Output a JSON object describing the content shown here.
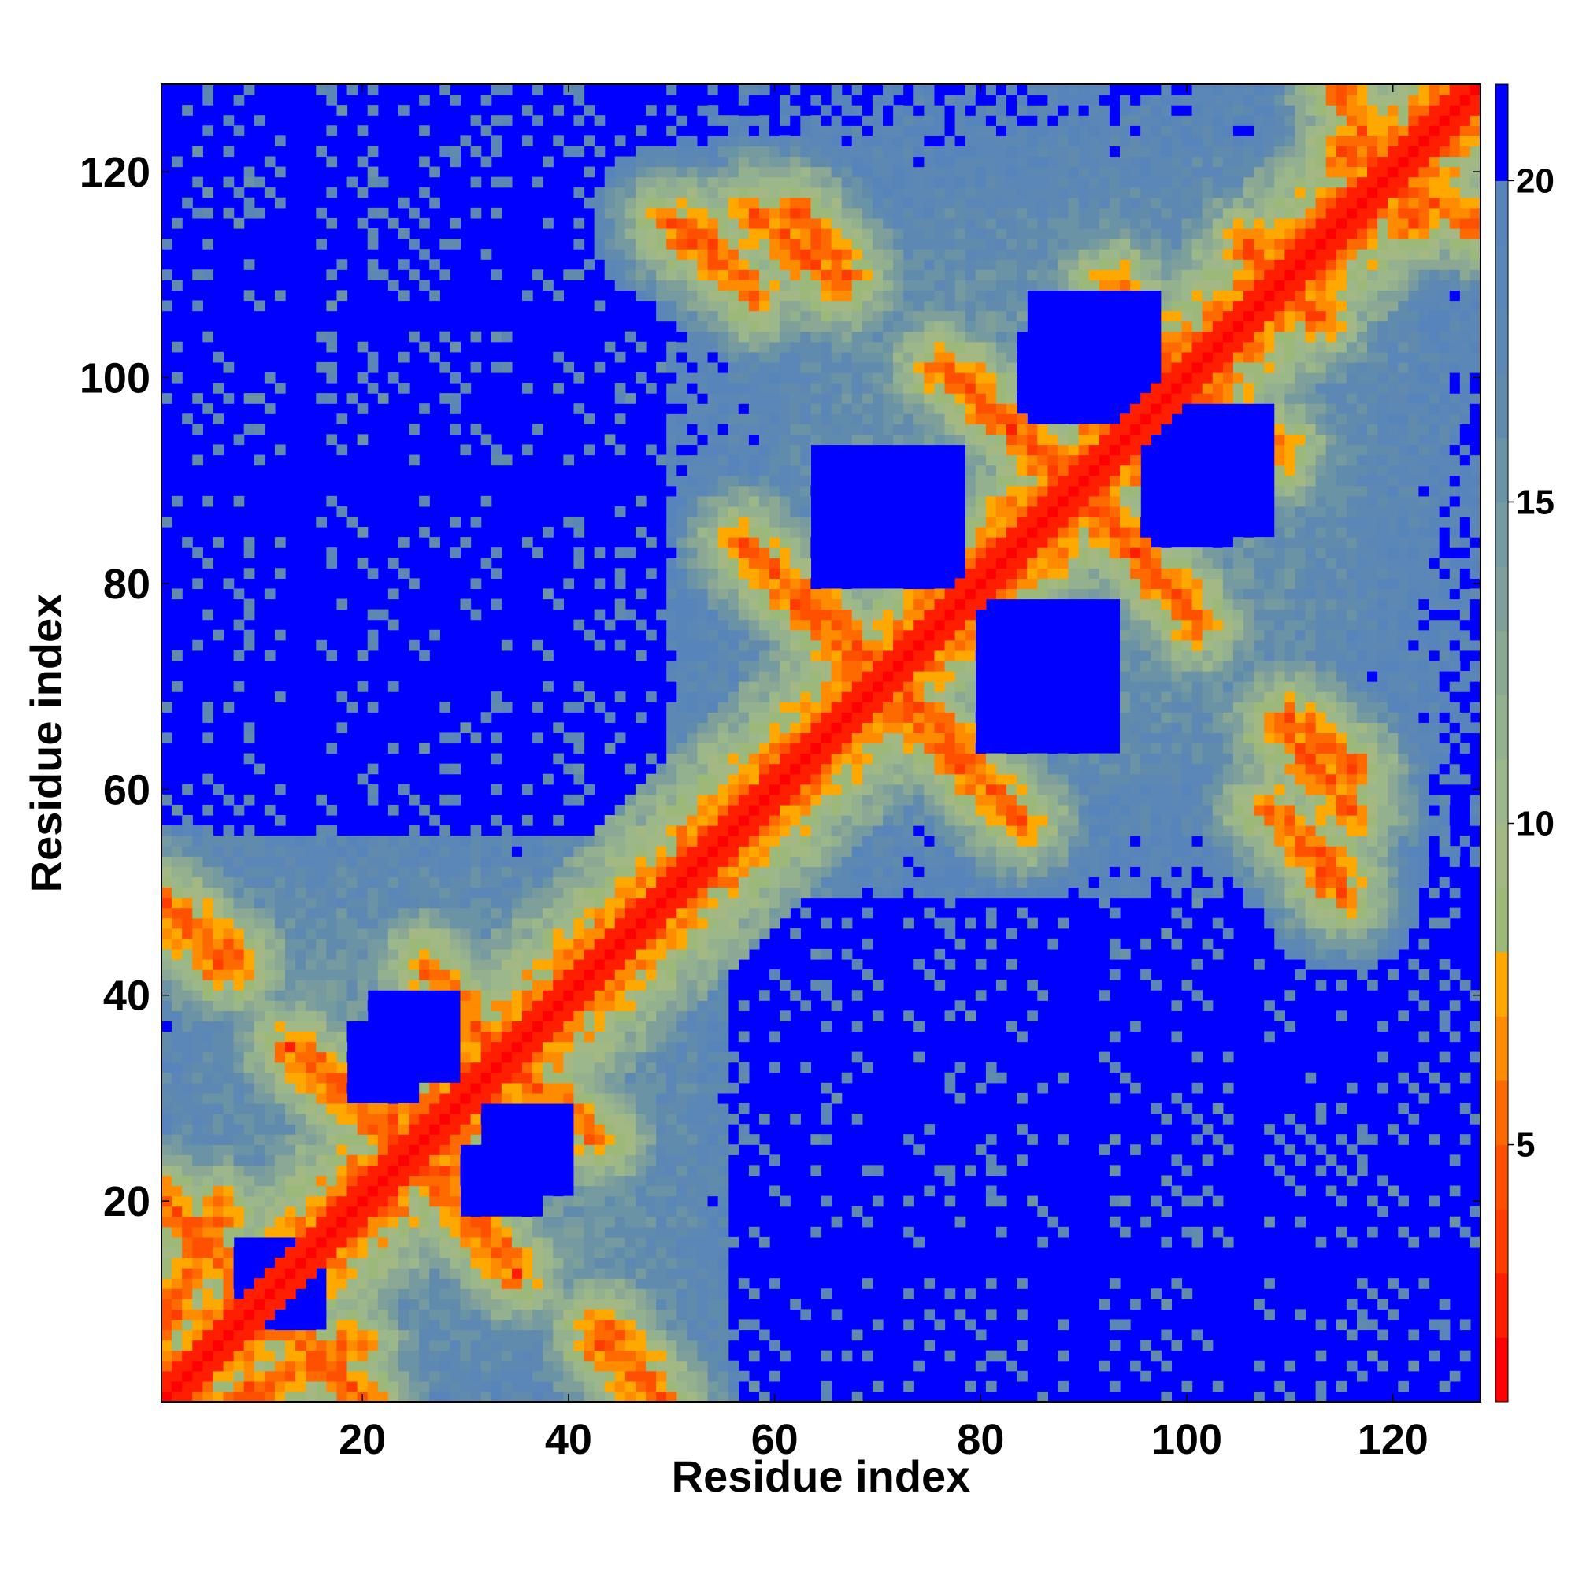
{
  "chart_data": {
    "type": "heatmap",
    "title": "",
    "xlabel": "Residue index",
    "ylabel": "Residue index",
    "xlim": [
      1,
      128
    ],
    "ylim": [
      1,
      128
    ],
    "x_ticks": [
      20,
      40,
      60,
      80,
      100,
      120
    ],
    "y_ticks": [
      20,
      40,
      60,
      80,
      100,
      120
    ],
    "colorbar": {
      "range": [
        1,
        21.5
      ],
      "ticks": [
        5,
        10,
        15,
        20
      ],
      "levels": [
        {
          "to": 2,
          "color": "#ff0000"
        },
        {
          "to": 3,
          "color": "#ff1e00"
        },
        {
          "to": 4,
          "color": "#ff3c00"
        },
        {
          "to": 5,
          "color": "#ff5000"
        },
        {
          "to": 6,
          "color": "#ff6a00"
        },
        {
          "to": 7,
          "color": "#ff8c00"
        },
        {
          "to": 8,
          "color": "#ffa800"
        },
        {
          "to": 9,
          "color": "#9cb97a"
        },
        {
          "to": 10,
          "color": "#a3b882"
        },
        {
          "to": 11,
          "color": "#9cb78a"
        },
        {
          "to": 12,
          "color": "#93b08f"
        },
        {
          "to": 13,
          "color": "#8aa894"
        },
        {
          "to": 14,
          "color": "#7fa09a"
        },
        {
          "to": 15,
          "color": "#759aa0"
        },
        {
          "to": 16,
          "color": "#6b93a6"
        },
        {
          "to": 17,
          "color": "#618bad"
        },
        {
          "to": 18,
          "color": "#5d88b3"
        },
        {
          "to": 19,
          "color": "#5a86b8"
        },
        {
          "to": 20,
          "color": "#5684bb"
        },
        {
          "to": 21.5,
          "color": "#0000ff"
        }
      ]
    },
    "cutoff": 21,
    "diagonal_width": 2.2,
    "helix_blocks": [
      [
        1,
        12
      ],
      [
        16,
        34
      ],
      [
        36,
        50
      ],
      [
        55,
        70
      ],
      [
        73,
        88
      ],
      [
        92,
        104
      ],
      [
        107,
        128
      ]
    ],
    "sheet_contacts": [
      {
        "x": [
          1,
          8
        ],
        "y": [
          20,
          12
        ]
      },
      {
        "x": [
          1,
          8
        ],
        "y": [
          49,
          43
        ]
      },
      {
        "x": [
          8,
          19
        ],
        "y": [
          1,
          6
        ]
      },
      {
        "x": [
          16,
          27
        ],
        "y": [
          33,
          25
        ]
      },
      {
        "x": [
          26,
          35
        ],
        "y": [
          23,
          13
        ]
      },
      {
        "x": [
          26,
          33
        ],
        "y": [
          43,
          35
        ]
      },
      {
        "x": [
          35,
          43
        ],
        "y": [
          32,
          26
        ]
      },
      {
        "x": [
          43,
          49
        ],
        "y": [
          6,
          1
        ]
      },
      {
        "x": [
          52,
          58
        ],
        "y": [
          115,
          108
        ]
      },
      {
        "x": [
          57,
          69
        ],
        "y": [
          84,
          73
        ]
      },
      {
        "x": [
          62,
          67
        ],
        "y": [
          116,
          110
        ]
      },
      {
        "x": [
          76,
          87
        ],
        "y": [
          101,
          92
        ]
      },
      {
        "x": [
          70,
          84
        ],
        "y": [
          70,
          57
        ]
      },
      {
        "x": [
          91,
          100
        ],
        "y": [
          87,
          78
        ]
      },
      {
        "x": [
          92,
          99
        ],
        "y": [
          108,
          101
        ]
      },
      {
        "x": [
          101,
          109
        ],
        "y": [
          99,
          93
        ]
      },
      {
        "x": [
          109,
          116
        ],
        "y": [
          66,
          58
        ]
      },
      {
        "x": [
          111,
          115
        ],
        "y": [
          55,
          50
        ]
      },
      {
        "x": [
          106,
          112
        ],
        "y": [
          113,
          106
        ]
      },
      {
        "x": [
          115,
          128
        ],
        "y": [
          122,
          115
        ]
      }
    ],
    "empty_regions": [
      {
        "x": [
          85,
          97
        ],
        "y": [
          96,
          108
        ]
      },
      {
        "x": [
          97,
          104
        ],
        "y": [
          84,
          94
        ]
      },
      {
        "x": [
          65,
          78
        ],
        "y": [
          82,
          92
        ]
      },
      {
        "x": [
          80,
          93
        ],
        "y": [
          64,
          78
        ]
      },
      {
        "x": [
          21,
          29
        ],
        "y": [
          32,
          40
        ]
      },
      {
        "x": [
          30,
          37
        ],
        "y": [
          19,
          25
        ]
      },
      {
        "x": [
          9,
          16
        ],
        "y": [
          8,
          16
        ]
      }
    ]
  }
}
